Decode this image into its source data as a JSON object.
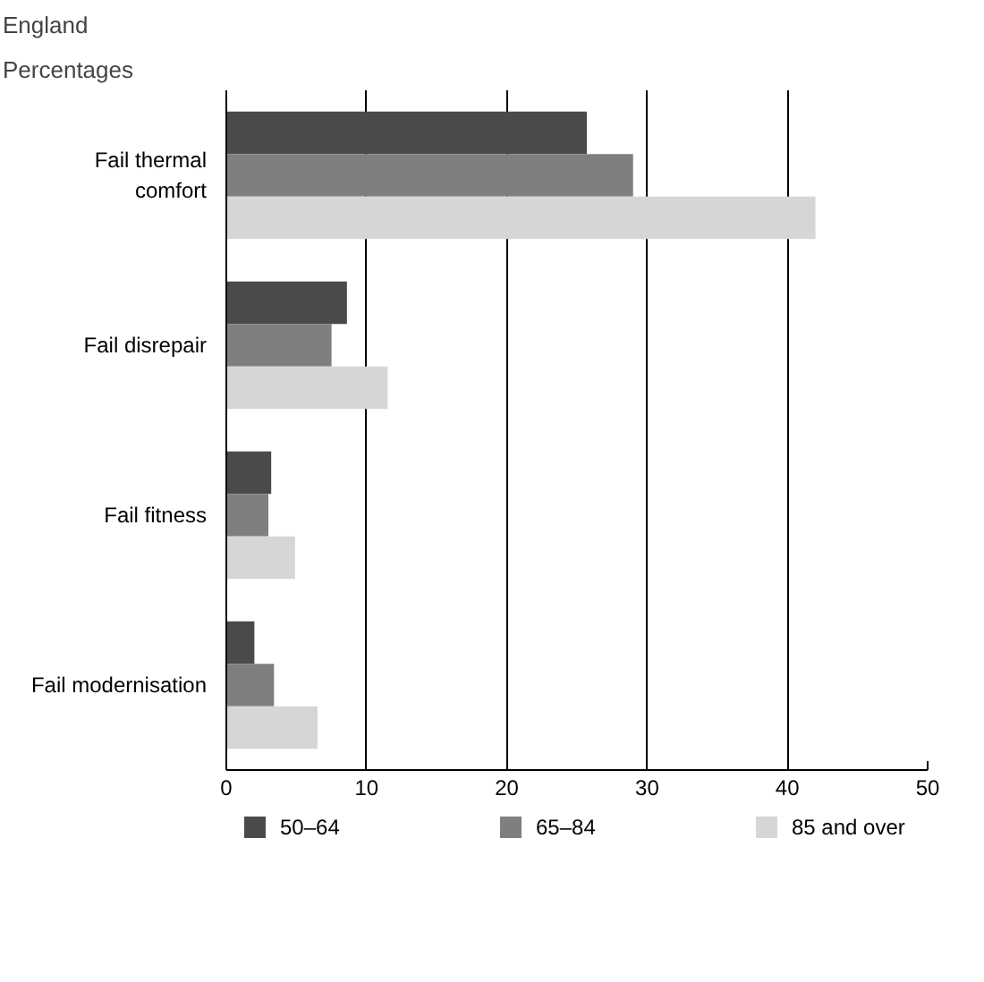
{
  "chart_data": {
    "type": "bar",
    "orientation": "horizontal",
    "title": "England",
    "subtitle": "Percentages",
    "categories": [
      "Fail thermal\ncomfort",
      "Fail disrepair",
      "Fail fitness",
      "Fail modernisation"
    ],
    "series": [
      {
        "name": "50–64",
        "color": "#4a4a4a",
        "values": [
          25.7,
          8.6,
          3.2,
          2.0
        ]
      },
      {
        "name": "65–84",
        "color": "#7f7f7f",
        "values": [
          29.0,
          7.5,
          3.0,
          3.4
        ]
      },
      {
        "name": "85 and over",
        "color": "#d6d6d6",
        "values": [
          42.0,
          11.5,
          4.9,
          6.5
        ]
      }
    ],
    "xlim": [
      0,
      50
    ],
    "xticks": [
      0,
      10,
      20,
      30,
      40,
      50
    ],
    "grid": "x",
    "legend": "bottom"
  }
}
